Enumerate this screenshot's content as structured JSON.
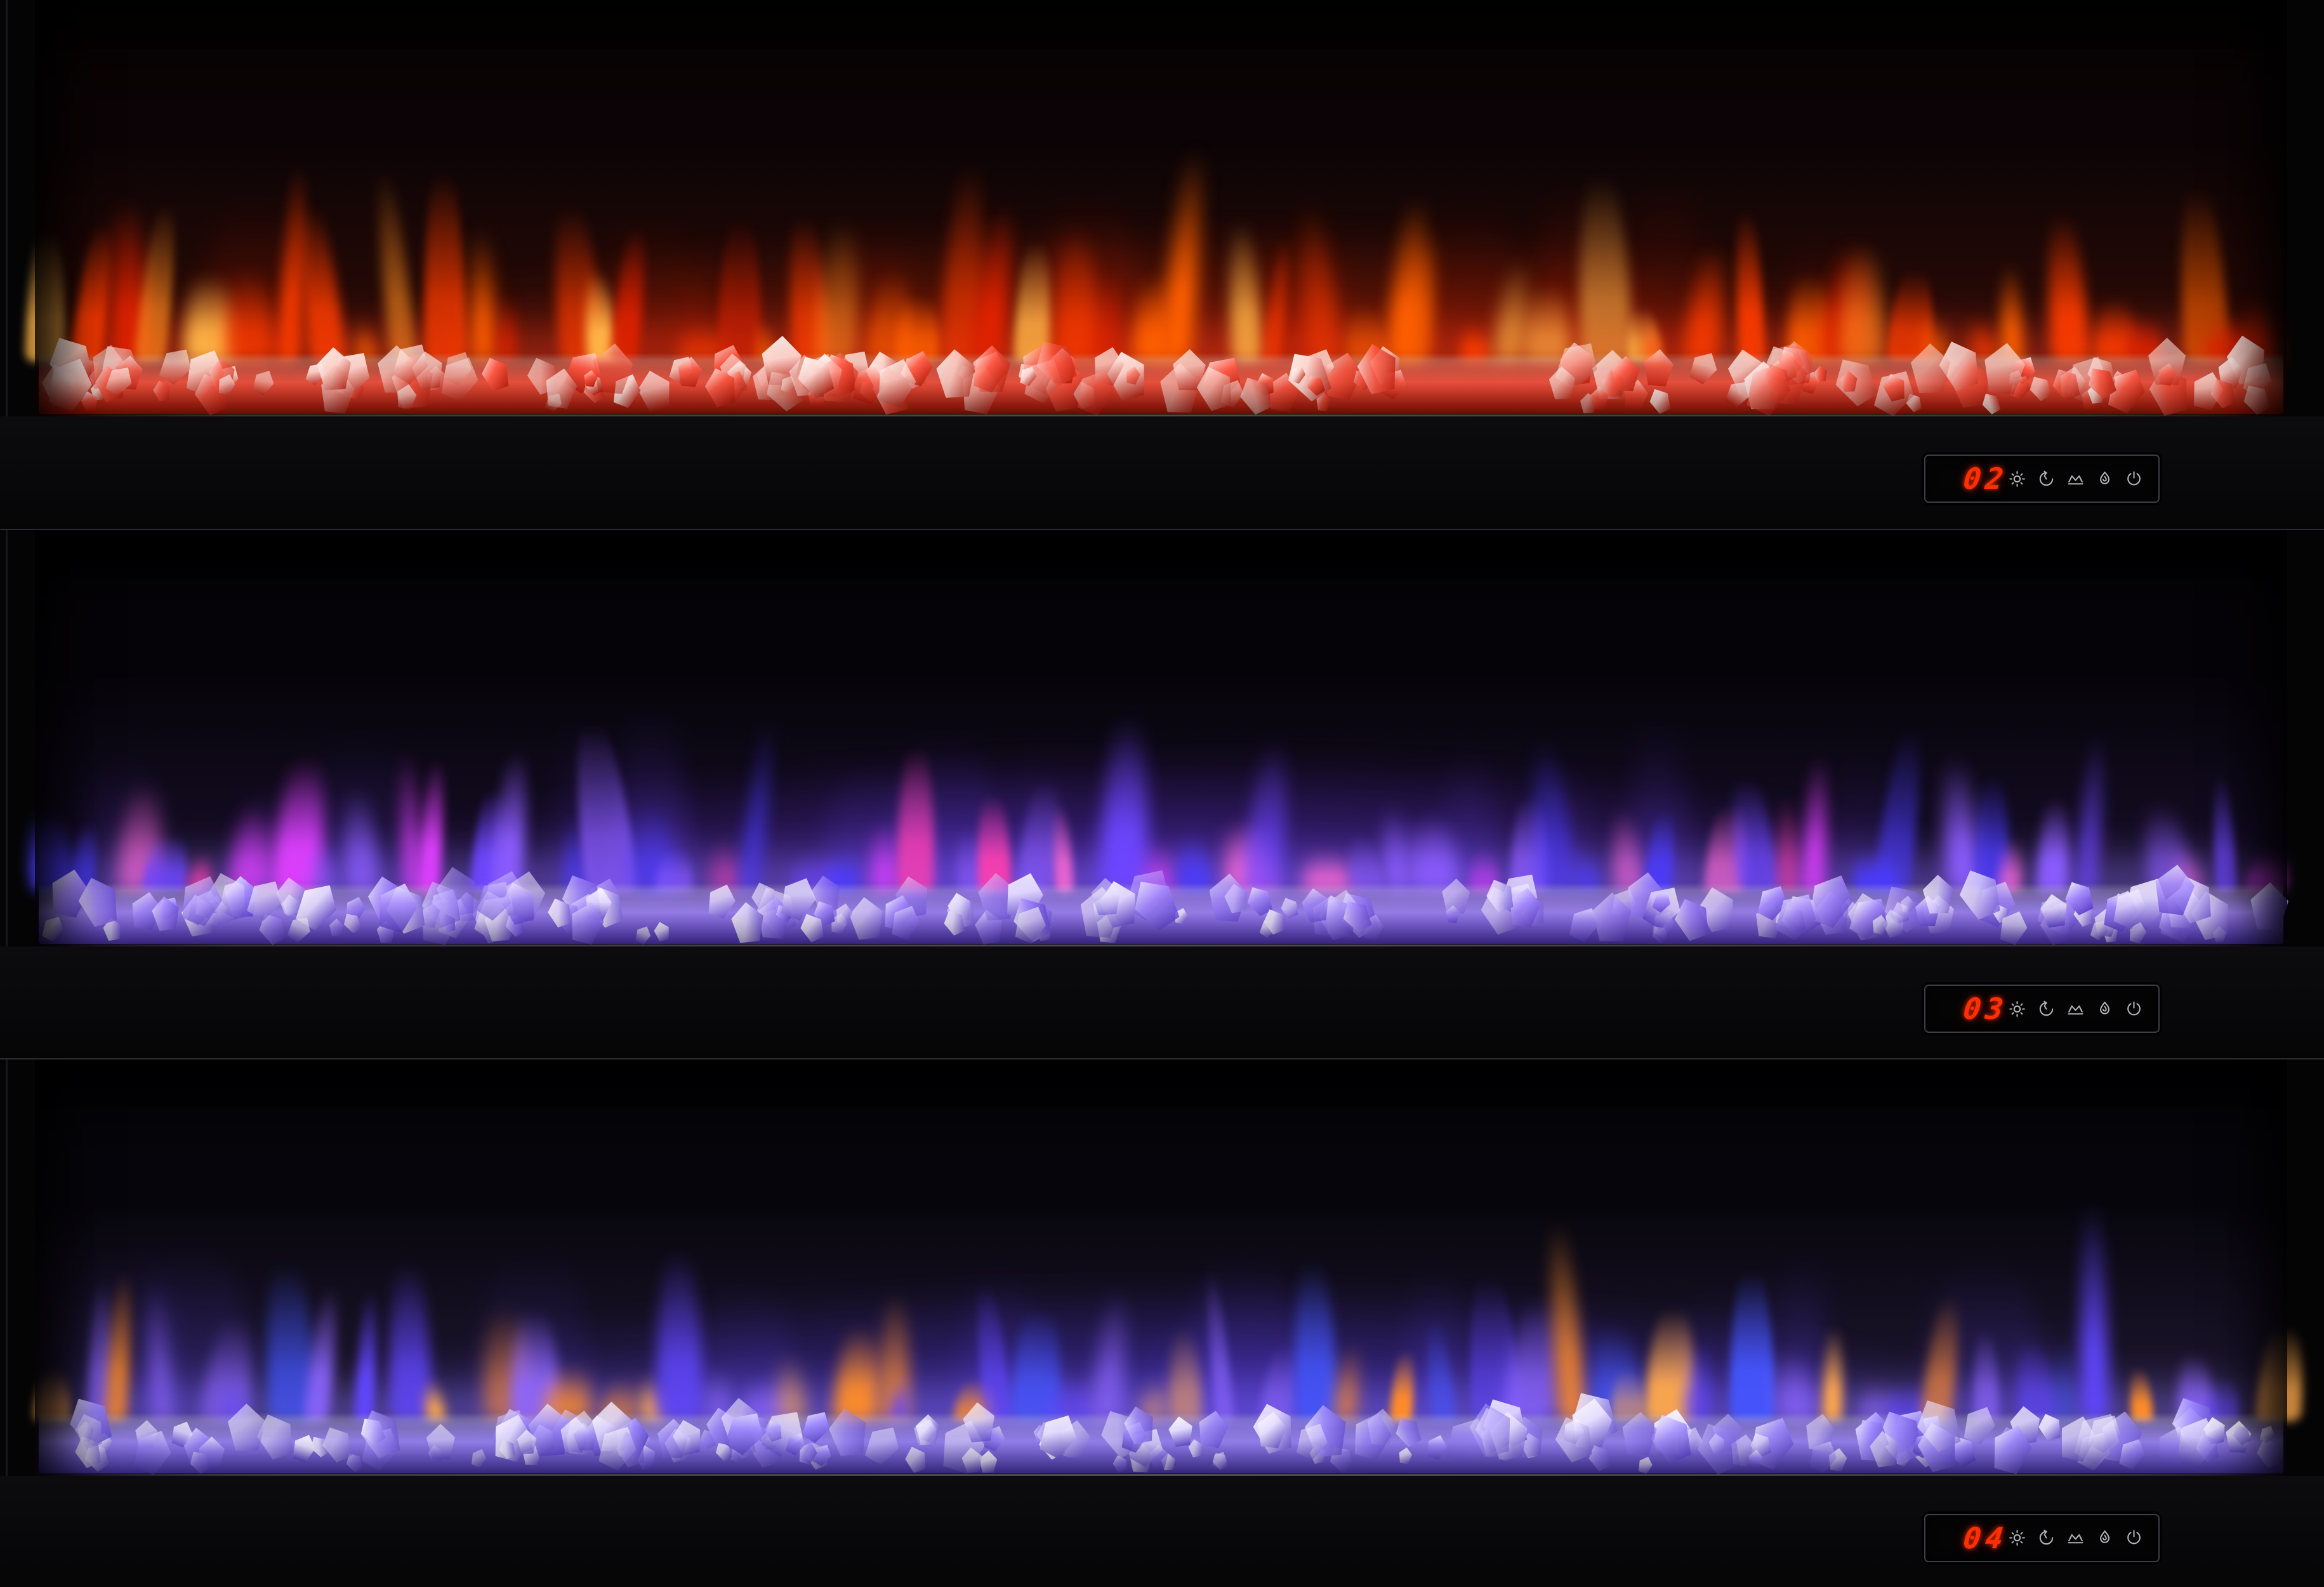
{
  "device": "3-panel electric fireplace wall",
  "panels": [
    {
      "name": "top-fireplace",
      "display_value": "02",
      "effects": {
        "ambient_top": "#0c0406",
        "ambient_bottom": "#380d06",
        "glow": "#a82105",
        "floor_glow": "#ff3b20",
        "crystal_tint": "#ff5a45",
        "crystal_deep": "#b51605",
        "crystal_light": "#ffd9d2",
        "accent_chance": "0.3",
        "flame_primary": [
          "#e02200",
          "#ff3c00",
          "#ff5f00"
        ],
        "flame_accent": [
          "#ff8a1e",
          "#ffb547"
        ]
      }
    },
    {
      "name": "middle-fireplace",
      "display_value": "03",
      "effects": {
        "ambient_top": "#060409",
        "ambient_bottom": "#1d1133",
        "glow": "#5c2fd0",
        "floor_glow": "#8f76ff",
        "crystal_tint": "#a78cff",
        "crystal_deep": "#5b3fd0",
        "crystal_light": "#e6dcff",
        "accent_chance": "0.35",
        "flame_primary": [
          "#6d46ff",
          "#4b3bff",
          "#8b5cff"
        ],
        "flame_accent": [
          "#ff3fb0",
          "#e03fff",
          "#ff6ad5"
        ]
      }
    },
    {
      "name": "bottom-fireplace",
      "display_value": "04",
      "effects": {
        "ambient_top": "#07060c",
        "ambient_bottom": "#271c3e",
        "glow": "#4c33d6",
        "floor_glow": "#8f7bff",
        "crystal_tint": "#a18cff",
        "crystal_deep": "#5743c9",
        "crystal_light": "#e8e0ff",
        "accent_chance": "0.3",
        "flame_primary": [
          "#6246ff",
          "#4456ff",
          "#8d66ff"
        ],
        "flame_accent": [
          "#ff8c2a",
          "#ffa94d"
        ]
      }
    }
  ],
  "control_panel": {
    "digit_color": "#ff2f00",
    "icons": [
      "brightness-icon",
      "timer-icon",
      "heater-icon",
      "flame-icon",
      "power-icon"
    ]
  }
}
